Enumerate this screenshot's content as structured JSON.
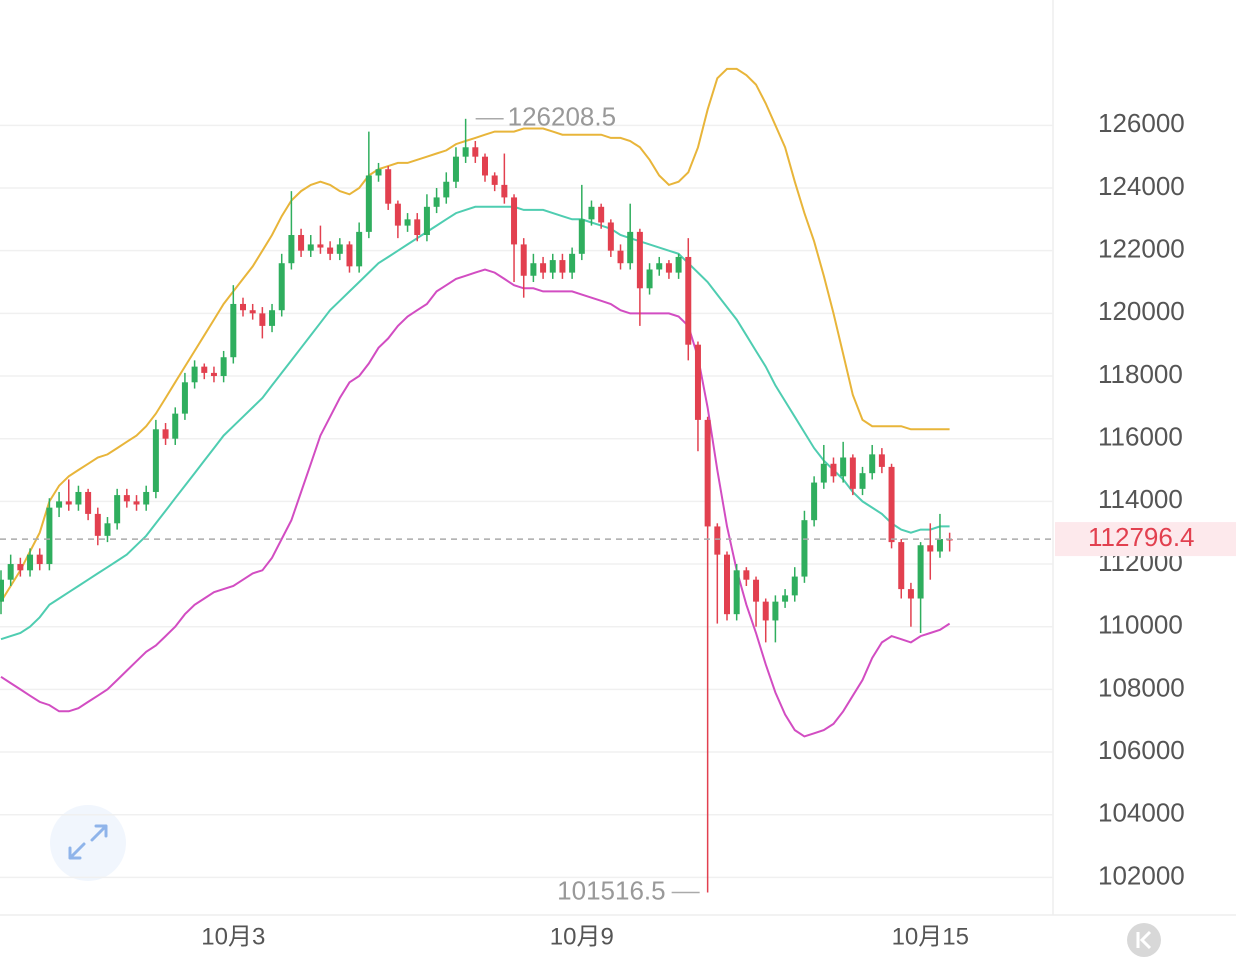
{
  "chart_data": {
    "type": "candlestick",
    "categories": [
      null,
      null,
      null,
      null,
      null,
      null,
      null,
      null,
      null,
      null,
      null,
      null,
      null,
      null,
      null,
      null,
      null,
      null,
      null,
      null,
      null,
      null,
      null,
      null,
      "10月3",
      null,
      null,
      null,
      null,
      null,
      null,
      null,
      null,
      null,
      null,
      null,
      null,
      null,
      null,
      null,
      null,
      null,
      null,
      null,
      null,
      null,
      null,
      null,
      null,
      null,
      null,
      null,
      null,
      null,
      null,
      null,
      null,
      null,
      null,
      null,
      "10月9",
      null,
      null,
      null,
      null,
      null,
      null,
      null,
      null,
      null,
      null,
      null,
      null,
      null,
      null,
      null,
      null,
      null,
      null,
      null,
      null,
      null,
      null,
      null,
      null,
      null,
      null,
      null,
      null,
      null,
      null,
      null,
      null,
      null,
      null,
      null,
      "10月15",
      null,
      null
    ],
    "open": [
      110800,
      111500,
      112000,
      111800,
      112300,
      112000,
      113800,
      114000,
      113900,
      114300,
      113600,
      112900,
      113300,
      114200,
      114000,
      113900,
      114300,
      116300,
      116000,
      116800,
      117800,
      118300,
      118100,
      118000,
      118600,
      120300,
      120100,
      120000,
      119600,
      120100,
      121600,
      122500,
      122000,
      122200,
      122100,
      121900,
      122200,
      121500,
      122600,
      124400,
      124600,
      123500,
      122800,
      123000,
      122500,
      123400,
      123700,
      124200,
      125000,
      125300,
      125000,
      124400,
      124100,
      123700,
      122200,
      121200,
      121600,
      121300,
      121700,
      121300,
      121900,
      123000,
      123400,
      122900,
      122000,
      121600,
      122600,
      120800,
      121400,
      121600,
      121300,
      121800,
      119000,
      116600,
      113200,
      112300,
      110400,
      111800,
      111500,
      110800,
      110200,
      110800,
      111000,
      111600,
      113400,
      114600,
      115200,
      114800,
      115400,
      114400,
      114900,
      115500,
      115100,
      112700,
      111200,
      110900,
      112600,
      112400,
      112800
    ],
    "high": [
      111800,
      112300,
      112200,
      112500,
      112500,
      114100,
      114300,
      114700,
      114500,
      114400,
      113800,
      113500,
      114400,
      114400,
      114200,
      114500,
      116600,
      116500,
      117000,
      118100,
      118500,
      118400,
      118300,
      118800,
      120900,
      120500,
      120300,
      120200,
      120300,
      121900,
      123900,
      122700,
      122500,
      122800,
      122300,
      122400,
      122300,
      122900,
      125800,
      124800,
      124700,
      123600,
      123200,
      123200,
      123800,
      124000,
      124500,
      125300,
      126208.5,
      125500,
      125100,
      124500,
      125100,
      123800,
      122400,
      121900,
      121800,
      121900,
      121900,
      122100,
      124100,
      123600,
      123500,
      123000,
      122200,
      123500,
      122700,
      121600,
      121800,
      121700,
      121900,
      122400,
      119100,
      116700,
      113300,
      112400,
      112000,
      111900,
      111600,
      110900,
      111000,
      111200,
      111900,
      113700,
      114800,
      115800,
      115400,
      115900,
      115500,
      115100,
      115800,
      115700,
      115200,
      112800,
      111400,
      112700,
      113300,
      113600,
      113000
    ],
    "low": [
      110400,
      111300,
      111600,
      111600,
      111800,
      111800,
      113500,
      113700,
      113700,
      113400,
      112600,
      112700,
      113100,
      113800,
      113700,
      113700,
      114100,
      115800,
      115800,
      116600,
      117600,
      117900,
      117800,
      117800,
      118400,
      119900,
      119800,
      119200,
      119400,
      119900,
      121400,
      121800,
      121800,
      121900,
      121700,
      121700,
      121300,
      121300,
      122400,
      124200,
      123300,
      122400,
      122600,
      122300,
      122300,
      123200,
      123500,
      124000,
      124800,
      124800,
      124200,
      123900,
      123500,
      121000,
      120500,
      121000,
      121100,
      121100,
      121100,
      121100,
      121700,
      122800,
      122700,
      121800,
      121400,
      121400,
      119600,
      120600,
      121200,
      121100,
      121100,
      118500,
      115600,
      101516.5,
      110100,
      110200,
      110200,
      111300,
      110000,
      109500,
      109500,
      110600,
      110800,
      111400,
      113200,
      114400,
      114600,
      114600,
      114200,
      114200,
      114700,
      114900,
      112500,
      110900,
      110000,
      109800,
      111500,
      112200,
      112400
    ],
    "close": [
      111500,
      112000,
      111800,
      112300,
      112000,
      113800,
      114000,
      113900,
      114300,
      113600,
      112900,
      113300,
      114200,
      114000,
      113900,
      114300,
      116300,
      116000,
      116800,
      117800,
      118300,
      118100,
      118000,
      118600,
      120300,
      120100,
      120000,
      119600,
      120100,
      121600,
      122500,
      122000,
      122200,
      122100,
      121900,
      122200,
      121500,
      122600,
      124400,
      124600,
      123500,
      122800,
      123000,
      122500,
      123400,
      123700,
      124200,
      125000,
      125300,
      125000,
      124400,
      124100,
      123700,
      122200,
      121200,
      121600,
      121300,
      121700,
      121300,
      121900,
      123000,
      123400,
      122900,
      122000,
      121600,
      122600,
      120800,
      121400,
      121600,
      121300,
      121800,
      119000,
      116600,
      113200,
      112300,
      110400,
      111800,
      111500,
      110800,
      110200,
      110800,
      111000,
      111600,
      113400,
      114600,
      115200,
      114800,
      115400,
      114400,
      114900,
      115500,
      115100,
      112700,
      111200,
      110900,
      112600,
      112400,
      112800,
      112796.4
    ],
    "up_color": "#2fae5e",
    "down_color": "#e2404f",
    "lines": [
      {
        "color": "#e8b53a",
        "values": [
          110800,
          111300,
          111800,
          112400,
          113000,
          114000,
          114500,
          114800,
          115000,
          115200,
          115400,
          115500,
          115700,
          115900,
          116100,
          116400,
          116800,
          117300,
          117800,
          118300,
          118800,
          119300,
          119800,
          120300,
          120700,
          121100,
          121500,
          122000,
          122500,
          123100,
          123600,
          123900,
          124100,
          124200,
          124100,
          123900,
          123800,
          124000,
          124400,
          124600,
          124700,
          124800,
          124800,
          124900,
          125000,
          125100,
          125200,
          125400,
          125500,
          125600,
          125700,
          125800,
          125800,
          125800,
          125900,
          125900,
          125900,
          125800,
          125700,
          125700,
          125700,
          125700,
          125700,
          125600,
          125600,
          125500,
          125300,
          124900,
          124400,
          124100,
          124200,
          124500,
          125300,
          126500,
          127500,
          127800,
          127800,
          127600,
          127300,
          126700,
          126000,
          125300,
          124200,
          123200,
          122300,
          121200,
          120000,
          118700,
          117400,
          116600,
          116400,
          116400,
          116400,
          116400,
          116300,
          116300,
          116300,
          116300,
          116300
        ]
      },
      {
        "color": "#4fcdb1",
        "values": [
          109600,
          109700,
          109800,
          110000,
          110300,
          110700,
          110900,
          111100,
          111300,
          111500,
          111700,
          111900,
          112100,
          112300,
          112600,
          112900,
          113300,
          113700,
          114100,
          114500,
          114900,
          115300,
          115700,
          116100,
          116400,
          116700,
          117000,
          117300,
          117700,
          118100,
          118500,
          118900,
          119300,
          119700,
          120100,
          120400,
          120700,
          121000,
          121300,
          121600,
          121800,
          122000,
          122200,
          122400,
          122600,
          122800,
          123000,
          123200,
          123300,
          123400,
          123400,
          123400,
          123400,
          123400,
          123300,
          123300,
          123300,
          123200,
          123100,
          123000,
          123000,
          122900,
          122800,
          122700,
          122500,
          122400,
          122300,
          122200,
          122100,
          122000,
          121900,
          121600,
          121300,
          121000,
          120600,
          120200,
          119800,
          119300,
          118800,
          118300,
          117700,
          117200,
          116700,
          116200,
          115700,
          115300,
          115000,
          114700,
          114300,
          114000,
          113800,
          113600,
          113300,
          113100,
          113000,
          113100,
          113100,
          113200,
          113200
        ]
      },
      {
        "color": "#d24dc2",
        "values": [
          108400,
          108200,
          108000,
          107800,
          107600,
          107500,
          107300,
          107300,
          107400,
          107600,
          107800,
          108000,
          108300,
          108600,
          108900,
          109200,
          109400,
          109700,
          110000,
          110400,
          110700,
          110900,
          111100,
          111200,
          111300,
          111500,
          111700,
          111800,
          112200,
          112800,
          113400,
          114300,
          115200,
          116100,
          116700,
          117300,
          117800,
          118000,
          118400,
          118900,
          119200,
          119600,
          119900,
          120100,
          120300,
          120700,
          120900,
          121100,
          121200,
          121300,
          121400,
          121300,
          121100,
          120900,
          120800,
          120800,
          120700,
          120700,
          120700,
          120700,
          120600,
          120500,
          120400,
          120300,
          120100,
          120000,
          120000,
          120000,
          120000,
          120000,
          119900,
          119600,
          118600,
          117000,
          115000,
          113200,
          111800,
          110700,
          109800,
          108800,
          107900,
          107200,
          106700,
          106500,
          106600,
          106700,
          106900,
          107300,
          107800,
          108300,
          109000,
          109500,
          109700,
          109600,
          109500,
          109700,
          109800,
          109900,
          110100
        ]
      }
    ],
    "ylim": [
      100800,
      130000
    ],
    "yticks": [
      102000,
      104000,
      106000,
      108000,
      110000,
      112000,
      114000,
      116000,
      118000,
      120000,
      122000,
      124000,
      126000
    ],
    "grid": true
  }
}
